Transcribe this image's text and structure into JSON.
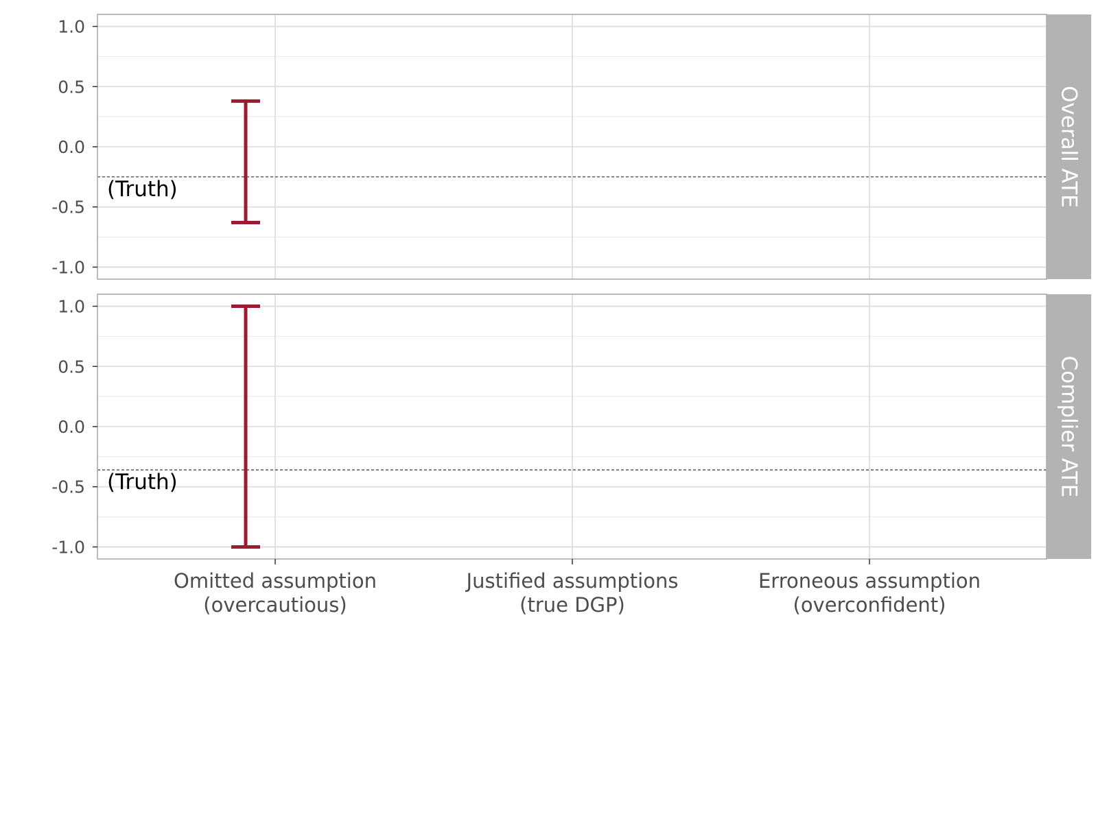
{
  "chart_data": {
    "type": "errorbar",
    "categories": [
      [
        "Omitted assumption",
        "(overcautious)"
      ],
      [
        "Justified assumptions",
        "(true DGP)"
      ],
      [
        "Erroneous assumption",
        "(overconfident)"
      ]
    ],
    "ylim": [
      -1.1,
      1.1
    ],
    "yticks": [
      1.0,
      0.5,
      0.0,
      -0.5,
      -1.0
    ],
    "ytick_labels": [
      "1.0",
      "0.5",
      "0.0",
      "-0.5",
      "-1.0"
    ],
    "truth_label": "(Truth)",
    "grid": true,
    "panels": [
      {
        "strip": "Overall ATE",
        "truth": -0.25,
        "intervals": [
          {
            "category": 0,
            "low": -0.63,
            "high": 0.38
          }
        ]
      },
      {
        "strip": "Complier ATE",
        "truth": -0.36,
        "intervals": [
          {
            "category": 0,
            "low": -1.0,
            "high": 1.0
          }
        ]
      }
    ],
    "colors": {
      "interval": "#9b1b30",
      "strip_bg": "#b3b3b3",
      "strip_text": "#ffffff",
      "grid_major": "#dedede",
      "grid_minor": "#ececec",
      "border": "#b3b3b3",
      "truth_line": "#444444"
    }
  }
}
